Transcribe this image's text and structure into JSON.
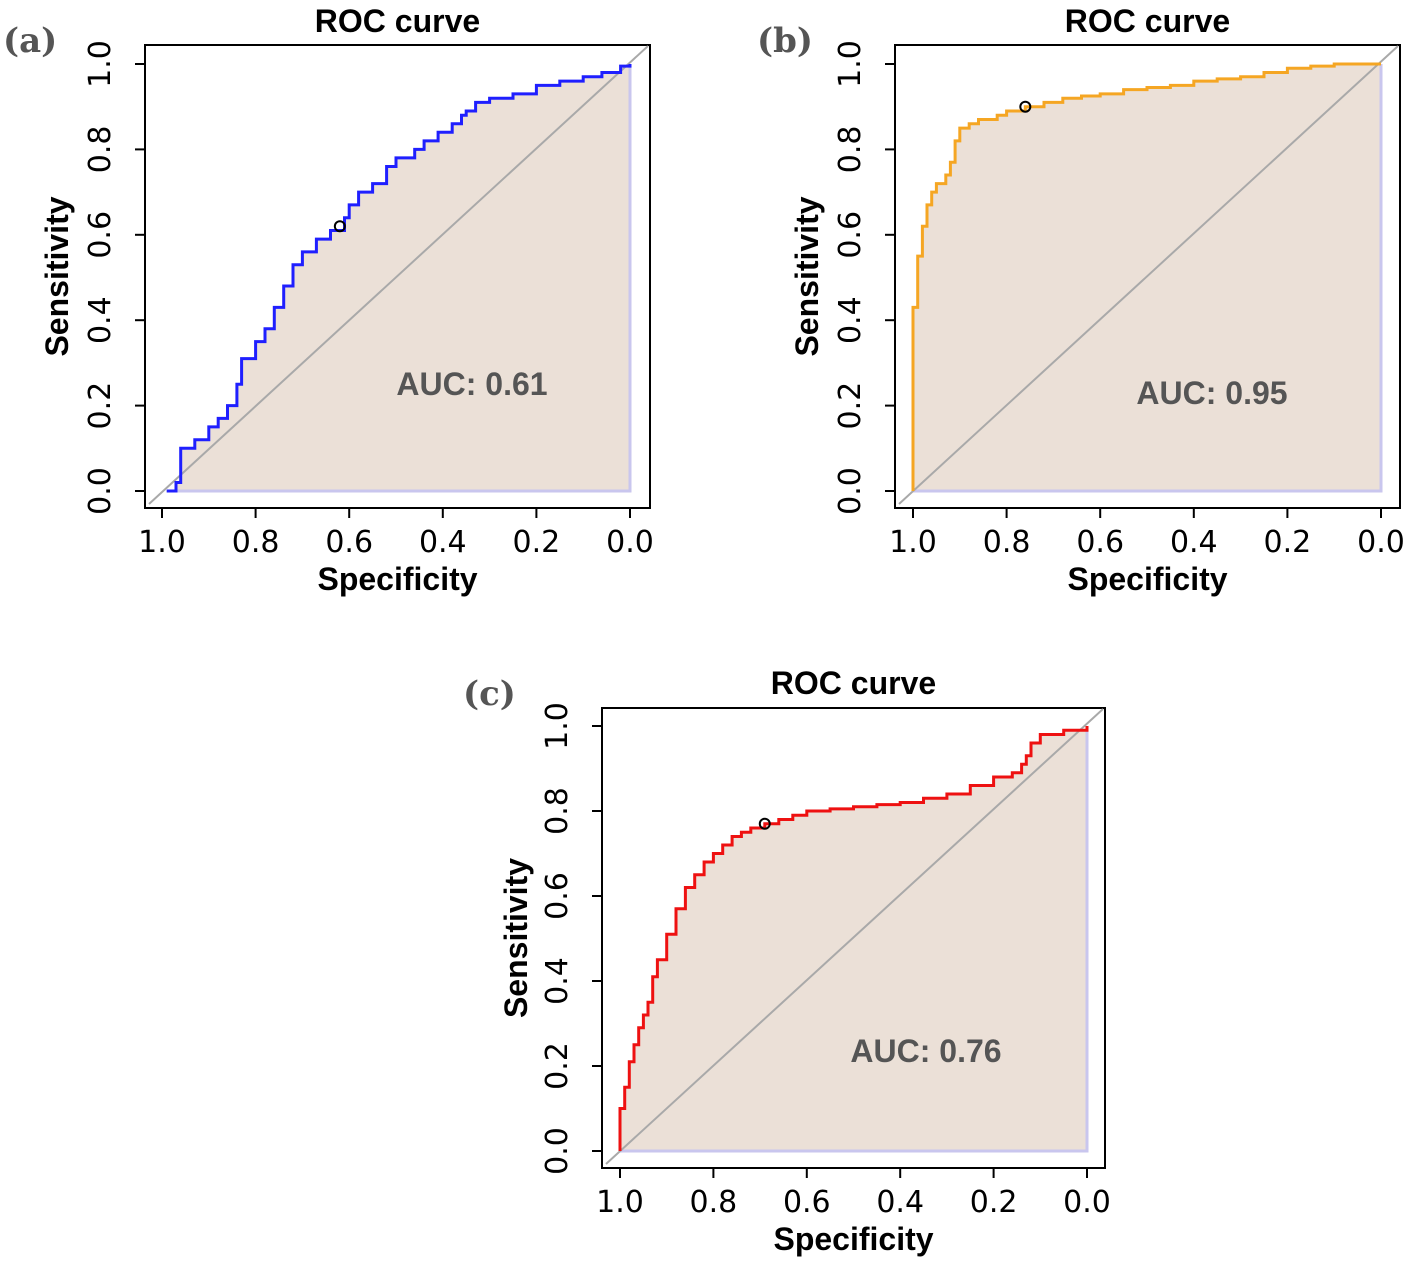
{
  "chart_data": [
    {
      "type": "line",
      "panel": "(a)",
      "title": "ROC curve",
      "xlabel": "Specificity",
      "ylabel": "Sensitivity",
      "xlim": [
        1.0,
        0.0
      ],
      "ylim": [
        0.0,
        1.0
      ],
      "x_ticks": [
        "1.0",
        "0.8",
        "0.6",
        "0.4",
        "0.2",
        "0.0"
      ],
      "y_ticks": [
        "0.0",
        "0.2",
        "0.4",
        "0.6",
        "0.8",
        "1.0"
      ],
      "auc_text": "AUC: 0.61",
      "line_color": "#1f1fff",
      "threshold_point": {
        "specificity": 0.62,
        "sensitivity": 0.62
      },
      "series": [
        {
          "name": "ROC",
          "specificity": [
            0.99,
            0.97,
            0.96,
            0.96,
            0.93,
            0.9,
            0.88,
            0.86,
            0.84,
            0.83,
            0.83,
            0.8,
            0.78,
            0.76,
            0.74,
            0.72,
            0.7,
            0.67,
            0.64,
            0.61,
            0.6,
            0.58,
            0.55,
            0.52,
            0.5,
            0.46,
            0.44,
            0.41,
            0.38,
            0.36,
            0.35,
            0.33,
            0.3,
            0.25,
            0.2,
            0.15,
            0.1,
            0.06,
            0.02,
            0.0
          ],
          "sensitivity": [
            0.0,
            0.02,
            0.06,
            0.1,
            0.12,
            0.15,
            0.17,
            0.2,
            0.25,
            0.3,
            0.31,
            0.35,
            0.38,
            0.43,
            0.48,
            0.53,
            0.56,
            0.59,
            0.61,
            0.64,
            0.67,
            0.7,
            0.72,
            0.76,
            0.78,
            0.8,
            0.82,
            0.84,
            0.86,
            0.88,
            0.89,
            0.91,
            0.92,
            0.93,
            0.95,
            0.96,
            0.97,
            0.98,
            0.995,
            1.0
          ]
        }
      ]
    },
    {
      "type": "line",
      "panel": "(b)",
      "title": "ROC curve",
      "xlabel": "Specificity",
      "ylabel": "Sensitivity",
      "xlim": [
        1.0,
        0.0
      ],
      "ylim": [
        0.0,
        1.0
      ],
      "x_ticks": [
        "1.0",
        "0.8",
        "0.6",
        "0.4",
        "0.2",
        "0.0"
      ],
      "y_ticks": [
        "0.0",
        "0.2",
        "0.4",
        "0.6",
        "0.8",
        "1.0"
      ],
      "auc_text": "AUC: 0.95",
      "line_color": "#f5a623",
      "threshold_point": {
        "specificity": 0.76,
        "sensitivity": 0.9
      },
      "series": [
        {
          "name": "ROC",
          "specificity": [
            1.0,
            1.0,
            0.99,
            0.99,
            0.98,
            0.97,
            0.96,
            0.95,
            0.93,
            0.92,
            0.91,
            0.9,
            0.88,
            0.86,
            0.84,
            0.82,
            0.8,
            0.76,
            0.72,
            0.68,
            0.64,
            0.6,
            0.55,
            0.5,
            0.45,
            0.4,
            0.35,
            0.3,
            0.25,
            0.2,
            0.15,
            0.1,
            0.05,
            0.0
          ],
          "sensitivity": [
            0.0,
            0.43,
            0.47,
            0.55,
            0.62,
            0.67,
            0.7,
            0.72,
            0.74,
            0.77,
            0.82,
            0.85,
            0.86,
            0.87,
            0.87,
            0.88,
            0.89,
            0.9,
            0.91,
            0.92,
            0.925,
            0.93,
            0.94,
            0.945,
            0.95,
            0.96,
            0.965,
            0.97,
            0.98,
            0.99,
            0.995,
            1.0,
            1.0,
            1.0
          ]
        }
      ]
    },
    {
      "type": "line",
      "panel": "(c)",
      "title": "ROC curve",
      "xlabel": "Specificity",
      "ylabel": "Sensitivity",
      "xlim": [
        1.0,
        0.0
      ],
      "ylim": [
        0.0,
        1.0
      ],
      "x_ticks": [
        "1.0",
        "0.8",
        "0.6",
        "0.4",
        "0.2",
        "0.0"
      ],
      "y_ticks": [
        "0.0",
        "0.2",
        "0.4",
        "0.6",
        "0.8",
        "1.0"
      ],
      "auc_text": "AUC: 0.76",
      "line_color": "#ee1111",
      "threshold_point": {
        "specificity": 0.69,
        "sensitivity": 0.77
      },
      "series": [
        {
          "name": "ROC",
          "specificity": [
            1.0,
            1.0,
            0.99,
            0.98,
            0.97,
            0.96,
            0.95,
            0.94,
            0.93,
            0.92,
            0.9,
            0.88,
            0.86,
            0.84,
            0.82,
            0.8,
            0.78,
            0.76,
            0.74,
            0.72,
            0.69,
            0.66,
            0.63,
            0.6,
            0.55,
            0.5,
            0.45,
            0.4,
            0.35,
            0.3,
            0.25,
            0.2,
            0.16,
            0.14,
            0.13,
            0.12,
            0.1,
            0.05,
            0.0
          ],
          "sensitivity": [
            0.0,
            0.1,
            0.15,
            0.21,
            0.25,
            0.29,
            0.32,
            0.35,
            0.41,
            0.45,
            0.51,
            0.57,
            0.62,
            0.65,
            0.68,
            0.7,
            0.72,
            0.74,
            0.75,
            0.76,
            0.77,
            0.78,
            0.79,
            0.8,
            0.805,
            0.81,
            0.815,
            0.82,
            0.83,
            0.84,
            0.86,
            0.88,
            0.89,
            0.91,
            0.93,
            0.96,
            0.98,
            0.99,
            1.0
          ]
        }
      ]
    }
  ]
}
